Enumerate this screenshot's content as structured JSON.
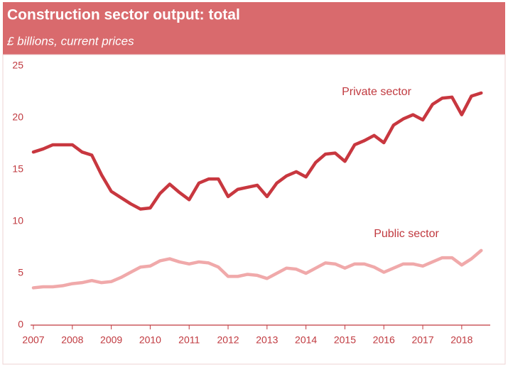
{
  "chart_data": {
    "type": "line",
    "title": "Construction sector output: total",
    "subtitle": "£ billions, current prices",
    "x": [
      2007,
      2007.25,
      2007.5,
      2007.75,
      2008,
      2008.25,
      2008.5,
      2008.75,
      2009,
      2009.25,
      2009.5,
      2009.75,
      2010,
      2010.25,
      2010.5,
      2010.75,
      2011,
      2011.25,
      2011.5,
      2011.75,
      2012,
      2012.25,
      2012.5,
      2012.75,
      2013,
      2013.25,
      2013.5,
      2013.75,
      2014,
      2014.25,
      2014.5,
      2014.75,
      2015,
      2015.25,
      2015.5,
      2015.75,
      2016,
      2016.25,
      2016.5,
      2016.75,
      2017,
      2017.25,
      2017.5,
      2017.75,
      2018,
      2018.25,
      2018.5
    ],
    "series": [
      {
        "name": "Private sector",
        "color": "#c8373f",
        "values": [
          16.7,
          17.0,
          17.4,
          17.4,
          17.4,
          16.7,
          16.4,
          14.5,
          12.9,
          12.3,
          11.7,
          11.2,
          11.3,
          12.7,
          13.6,
          12.8,
          12.1,
          13.7,
          14.1,
          14.1,
          12.4,
          13.1,
          13.3,
          13.5,
          12.4,
          13.7,
          14.4,
          14.8,
          14.3,
          15.7,
          16.5,
          16.6,
          15.8,
          17.4,
          17.8,
          18.3,
          17.6,
          19.3,
          19.9,
          20.3,
          19.8,
          21.3,
          21.9,
          22.0,
          20.3,
          22.1,
          22.4
        ]
      },
      {
        "name": "Public sector",
        "color": "#f0a9aa",
        "values": [
          3.6,
          3.7,
          3.7,
          3.8,
          4.0,
          4.1,
          4.3,
          4.1,
          4.2,
          4.6,
          5.1,
          5.6,
          5.7,
          6.2,
          6.4,
          6.1,
          5.9,
          6.1,
          6.0,
          5.6,
          4.7,
          4.7,
          4.9,
          4.8,
          4.5,
          5.0,
          5.5,
          5.4,
          5.0,
          5.5,
          6.0,
          5.9,
          5.5,
          5.9,
          5.9,
          5.6,
          5.1,
          5.5,
          5.9,
          5.9,
          5.7,
          6.1,
          6.5,
          6.5,
          5.8,
          6.4,
          7.2
        ]
      }
    ],
    "xlim": [
      2007,
      2018.55
    ],
    "xticks": [
      2007,
      2008,
      2009,
      2010,
      2011,
      2012,
      2013,
      2014,
      2015,
      2016,
      2017,
      2018
    ],
    "ylim": [
      0,
      25
    ],
    "yticks": [
      0,
      5,
      10,
      15,
      20,
      25
    ],
    "grid": false
  }
}
